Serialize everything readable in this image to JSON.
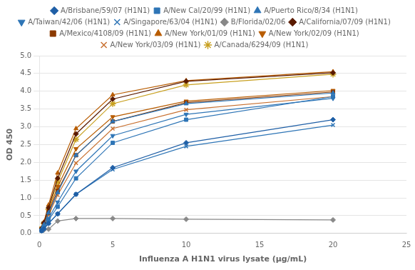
{
  "chart_data": {
    "type": "line",
    "xlabel": "Influenza A H1N1 virus lysate (μg/mL)",
    "ylabel": "OD 450",
    "x": [
      0.16,
      0.31,
      0.63,
      1.25,
      2.5,
      5.0,
      10.0,
      20.0
    ],
    "xlim": [
      0,
      25
    ],
    "xticks": [
      0,
      5,
      10,
      15,
      20,
      25
    ],
    "ylim": [
      0,
      5
    ],
    "yticks": [
      {
        "value": 0,
        "label": "0.0"
      },
      {
        "value": 0.5,
        "label": "0.5"
      },
      {
        "value": 1.0,
        "label": "1.0"
      },
      {
        "value": 1.5,
        "label": "1.5"
      },
      {
        "value": 2.0,
        "label": "2.0"
      },
      {
        "value": 2.5,
        "label": "2.5"
      },
      {
        "value": 3.0,
        "label": "3.0"
      },
      {
        "value": 3.5,
        "label": "3.5"
      },
      {
        "value": 4.0,
        "label": "4.0"
      },
      {
        "value": 4.5,
        "label": "4.5"
      },
      {
        "value": 5.0,
        "label": "5.0"
      }
    ],
    "grid": "y",
    "legend": "top",
    "series": [
      {
        "name": "A/Brisbane/59/07 (H1N1)",
        "color": "#1f5fa6",
        "marker": "diamond",
        "values": [
          0.07,
          0.13,
          0.28,
          0.55,
          1.1,
          1.85,
          2.55,
          3.2
        ]
      },
      {
        "name": "A/New Cal/20/99 (H1N1)",
        "color": "#2e75b6",
        "marker": "square",
        "values": [
          0.08,
          0.16,
          0.38,
          0.75,
          1.55,
          2.55,
          3.2,
          3.85
        ]
      },
      {
        "name": "A/Puerto Rico/8/34 (H1N1)",
        "color": "#2e75b6",
        "marker": "triangle-up",
        "values": [
          0.12,
          0.24,
          0.58,
          1.15,
          2.2,
          3.15,
          3.65,
          3.95
        ]
      },
      {
        "name": "A/Taiwan/42/06 (H1N1)",
        "color": "#2e75b6",
        "marker": "triangle-down",
        "values": [
          0.09,
          0.18,
          0.42,
          0.88,
          1.75,
          2.75,
          3.35,
          3.8
        ]
      },
      {
        "name": "A/Singapore/63/04 (H1N1)",
        "color": "#2e75b6",
        "marker": "x",
        "values": [
          0.07,
          0.13,
          0.28,
          0.55,
          1.1,
          1.8,
          2.45,
          3.05
        ]
      },
      {
        "name": "B/Florida/02/06",
        "color": "#888888",
        "marker": "diamond",
        "values": [
          0.09,
          0.1,
          0.12,
          0.35,
          0.42,
          0.42,
          0.4,
          0.38
        ]
      },
      {
        "name": "A/California/07/09 (H1N1)",
        "color": "#5a1a00",
        "marker": "diamond",
        "values": [
          0.14,
          0.3,
          0.72,
          1.55,
          2.8,
          3.78,
          4.28,
          4.52
        ]
      },
      {
        "name": "A/Mexico/4108/09 (H1N1)",
        "color": "#8b3a00",
        "marker": "square",
        "values": [
          0.12,
          0.24,
          0.58,
          1.2,
          2.2,
          3.15,
          3.68,
          3.98
        ]
      },
      {
        "name": "A/New York/01/09 (H1N1)",
        "color": "#b85c00",
        "marker": "triangle-up",
        "values": [
          0.15,
          0.32,
          0.8,
          1.7,
          2.95,
          3.9,
          4.3,
          4.55
        ]
      },
      {
        "name": "A/New York/02/09 (H1N1)",
        "color": "#b85c00",
        "marker": "triangle-down",
        "values": [
          0.12,
          0.26,
          0.62,
          1.32,
          2.38,
          3.28,
          3.72,
          4.02
        ]
      },
      {
        "name": "A/New York/03/09 (H1N1)",
        "color": "#c87030",
        "marker": "x",
        "values": [
          0.11,
          0.22,
          0.52,
          1.08,
          1.98,
          2.95,
          3.48,
          3.85
        ]
      },
      {
        "name": "A/Canada/6294/09 (H1N1)",
        "color": "#c8a020",
        "marker": "star",
        "values": [
          0.13,
          0.28,
          0.68,
          1.45,
          2.65,
          3.65,
          4.18,
          4.48
        ]
      }
    ]
  }
}
